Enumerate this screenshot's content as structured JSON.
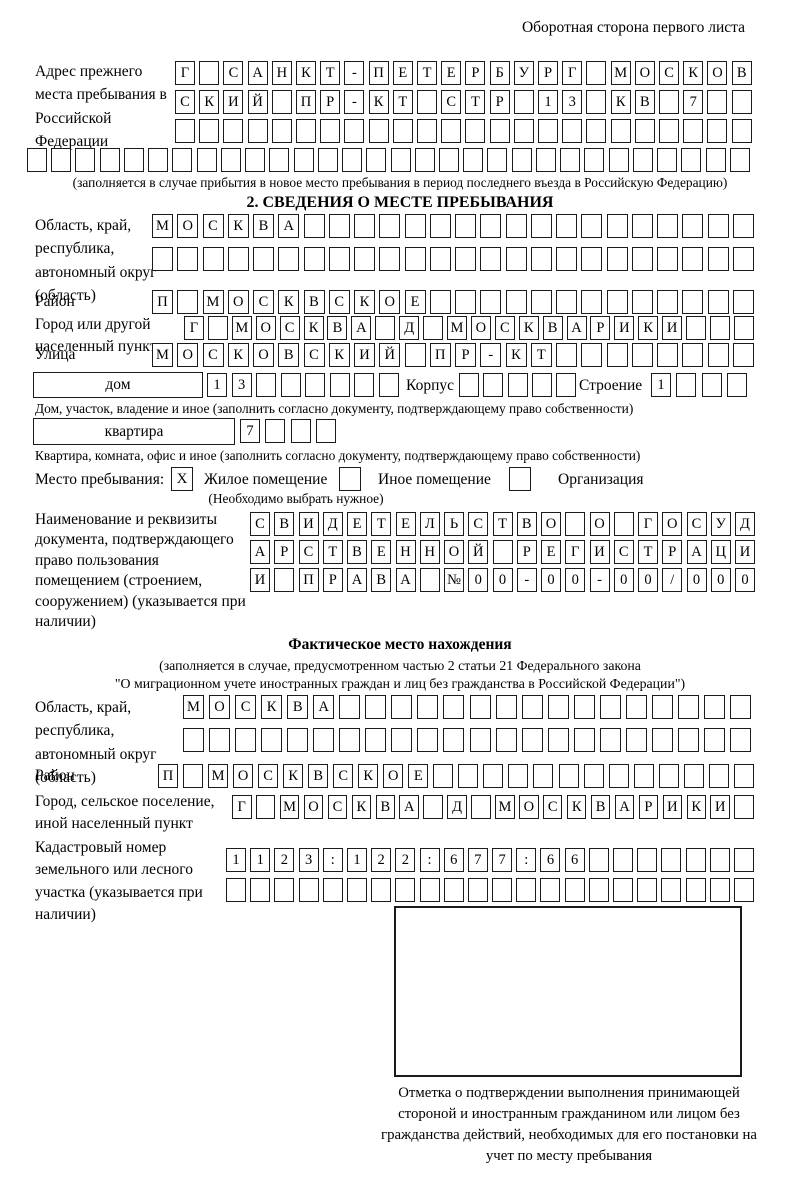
{
  "page": {
    "header": "Оборотная сторона первого листа"
  },
  "prev_address": {
    "label": "Адрес прежнего места пребывания в Российской Федерации",
    "rows": [
      {
        "text": "Г САНКТ-ПЕТЕРБУРГ МОСКОВ",
        "len": 24
      },
      {
        "text": "СКИЙ ПР-КТ СТР 13 КВ 7",
        "len": 24
      },
      {
        "text": "",
        "len": 24
      },
      {
        "text": "",
        "len": 30
      }
    ],
    "caption": "(заполняется в случае прибытия в новое место пребывания в период последнего въезда в Российскую Федерацию)"
  },
  "section2": {
    "title": "2. СВЕДЕНИЯ О МЕСТЕ ПРЕБЫВАНИЯ",
    "oblast": {
      "label": "Область, край, республика, автономный округ (область)",
      "rows": [
        {
          "text": "МОСКВА",
          "len": 24
        },
        {
          "text": "",
          "len": 24
        }
      ]
    },
    "raion": {
      "label": "Район",
      "row": {
        "text": "П МОСКВСКОЕ",
        "len": 24
      }
    },
    "gorod": {
      "label": "Город или другой населенный пункт",
      "row": {
        "text": "Г МОСКВА Д МОСКВАРИКИ",
        "len": 24
      }
    },
    "ulitsa": {
      "label": "Улица",
      "row": {
        "text": "МОСКОВСКИЙ ПР-КТ",
        "len": 24
      }
    },
    "dom": {
      "box_label": "дом",
      "number_row": {
        "text": "13",
        "len": 8
      },
      "korpus_label": "Корпус",
      "korpus_row": {
        "text": "",
        "len": 5
      },
      "stroenie_label": "Строение",
      "stroenie_row": {
        "text": "1",
        "len": 4
      },
      "caption": "Дом, участок, владение и иное (заполнить согласно документу, подтверждающему право собственности)"
    },
    "kvartira": {
      "box_label": "квартира",
      "number_row": {
        "text": "7",
        "len": 4
      },
      "caption": "Квартира, комната, офис и иное (заполнить согласно документу, подтверждающему право собственности)"
    },
    "mesto": {
      "label": "Место пребывания:",
      "checkbox1": "X",
      "opt1": "Жилое помещение",
      "checkbox2": "",
      "opt2": "Иное помещение",
      "checkbox3": "",
      "opt3": "Организация",
      "note": "(Необходимо выбрать нужное)"
    },
    "doc": {
      "label": "Наименование и реквизиты документа, подтверждающего право пользования помещением (строением, сооружением) (указывается при наличии)",
      "rows": [
        {
          "text": "СВИДЕТЕЛЬСТВО О ГОСУД",
          "len": 21
        },
        {
          "text": "АРСТВЕННОЙ РЕГИСТРАЦИ",
          "len": 21
        },
        {
          "text": "И ПРАВА №00-00-00/000",
          "len": 21
        }
      ]
    }
  },
  "factual": {
    "title": "Фактическое место нахождения",
    "sub1": "(заполняется в случае, предусмотренном частью 2 статьи 21 Федерального закона",
    "sub2": "\"О миграционном учете иностранных граждан и лиц без гражданства в Российской Федерации\")",
    "oblast": {
      "label": "Область, край, республика, автономный округ (область)",
      "rows": [
        {
          "text": "МОСКВА",
          "len": 22
        },
        {
          "text": "",
          "len": 22
        }
      ]
    },
    "raion": {
      "label": "Район",
      "row": {
        "text": "П МОСКВСКОЕ",
        "len": 24
      }
    },
    "gorod": {
      "label": "Город, сельское поселение, иной населенный пункт",
      "row": {
        "text": "Г МОСКВА Д МОСКВАРИКИ",
        "len": 22
      }
    },
    "kadastr": {
      "label": "Кадастровый номер земельного или лесного участка (указывается при наличии)",
      "rows": [
        {
          "text": "1123:122:677:66",
          "len": 22
        },
        {
          "text": "",
          "len": 22
        }
      ]
    },
    "stamp_caption": "Отметка о подтверждении выполнения принимающей стороной и иностранным гражданином или лицом без гражданства действий, необходимых для его постановки на учет по месту пребывания"
  }
}
